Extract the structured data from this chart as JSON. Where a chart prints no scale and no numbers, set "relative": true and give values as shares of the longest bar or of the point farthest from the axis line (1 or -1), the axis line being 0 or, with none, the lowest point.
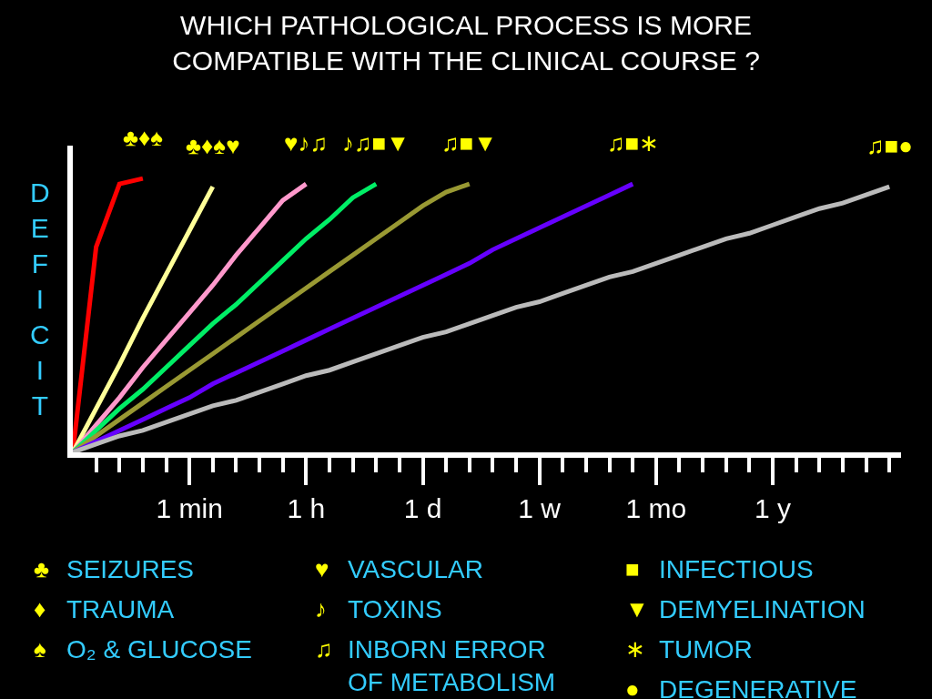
{
  "chart_data": {
    "type": "line",
    "title": "WHICH PATHOLOGICAL PROCESS IS MORE\nCOMPATIBLE WITH THE CLINICAL COURSE ?",
    "ylabel": "DEFICIT",
    "relative": true,
    "marker": "none",
    "line_style": "solid",
    "categories": [
      null,
      null,
      null,
      null,
      null,
      "1 min",
      null,
      null,
      null,
      null,
      "1 h",
      null,
      null,
      null,
      null,
      "1 d",
      null,
      null,
      null,
      null,
      "1 w",
      null,
      null,
      null,
      null,
      "1 mo",
      null,
      null,
      null,
      null,
      "1 y",
      null,
      null,
      null,
      null,
      null
    ],
    "series": [
      {
        "color": "#ff0000",
        "values": [
          0,
          0.75,
          0.98,
          1.0,
          null,
          null,
          null,
          null,
          null,
          null,
          null,
          null,
          null,
          null,
          null,
          null,
          null,
          null,
          null,
          null,
          null,
          null,
          null,
          null,
          null,
          null,
          null,
          null,
          null,
          null,
          null,
          null,
          null,
          null,
          null,
          null
        ]
      },
      {
        "color": "#ffff99",
        "values": [
          0,
          0.16,
          0.32,
          0.49,
          0.65,
          0.81,
          0.97,
          null,
          null,
          null,
          null,
          null,
          null,
          null,
          null,
          null,
          null,
          null,
          null,
          null,
          null,
          null,
          null,
          null,
          null,
          null,
          null,
          null,
          null,
          null,
          null,
          null,
          null,
          null,
          null,
          null
        ]
      },
      {
        "color": "#ff99cc",
        "values": [
          0,
          0.1,
          0.2,
          0.31,
          0.41,
          0.51,
          0.61,
          0.72,
          0.82,
          0.92,
          0.98,
          null,
          null,
          null,
          null,
          null,
          null,
          null,
          null,
          null,
          null,
          null,
          null,
          null,
          null,
          null,
          null,
          null,
          null,
          null,
          null,
          null,
          null,
          null,
          null,
          null
        ]
      },
      {
        "color": "#00ee66",
        "values": [
          0,
          0.08,
          0.16,
          0.23,
          0.31,
          0.39,
          0.47,
          0.54,
          0.62,
          0.7,
          0.78,
          0.85,
          0.93,
          0.98,
          null,
          null,
          null,
          null,
          null,
          null,
          null,
          null,
          null,
          null,
          null,
          null,
          null,
          null,
          null,
          null,
          null,
          null,
          null,
          null,
          null,
          null
        ]
      },
      {
        "color": "#999933",
        "values": [
          0,
          0.06,
          0.12,
          0.18,
          0.24,
          0.3,
          0.36,
          0.42,
          0.48,
          0.54,
          0.6,
          0.66,
          0.72,
          0.78,
          0.84,
          0.9,
          0.95,
          0.98,
          null,
          null,
          null,
          null,
          null,
          null,
          null,
          null,
          null,
          null,
          null,
          null,
          null,
          null,
          null,
          null,
          null,
          null
        ]
      },
      {
        "color": "#6600ff",
        "values": [
          0,
          0.04,
          0.08,
          0.12,
          0.16,
          0.2,
          0.25,
          0.29,
          0.33,
          0.37,
          0.41,
          0.45,
          0.49,
          0.53,
          0.57,
          0.61,
          0.65,
          0.69,
          0.74,
          0.78,
          0.82,
          0.86,
          0.9,
          0.94,
          0.98,
          null,
          null,
          null,
          null,
          null,
          null,
          null,
          null,
          null,
          null,
          null
        ]
      },
      {
        "color": "#bbbbbb",
        "values": [
          0,
          0.03,
          0.06,
          0.08,
          0.11,
          0.14,
          0.17,
          0.19,
          0.22,
          0.25,
          0.28,
          0.3,
          0.33,
          0.36,
          0.39,
          0.42,
          0.44,
          0.47,
          0.5,
          0.53,
          0.55,
          0.58,
          0.61,
          0.64,
          0.66,
          0.69,
          0.72,
          0.75,
          0.78,
          0.8,
          0.83,
          0.86,
          0.89,
          0.91,
          0.94,
          0.97
        ]
      }
    ],
    "annotations": [
      "♣♦♠",
      "♣♦♠♥",
      "♥♪♫",
      "♪♫■▼",
      "♫■▼",
      "♫■∗",
      "♫■●",
      "♣ SEIZURES",
      "♦ TRAUMA",
      "♠ O₂ & GLUCOSE",
      "♥ VASCULAR",
      "♪ TOXINS",
      "♫ INBORN ERROR\nOF METABOLISM",
      "■ INFECTIOUS",
      "▼ DEMYELINATION",
      "∗ TUMOR",
      "● DEGENERATIVE"
    ]
  }
}
